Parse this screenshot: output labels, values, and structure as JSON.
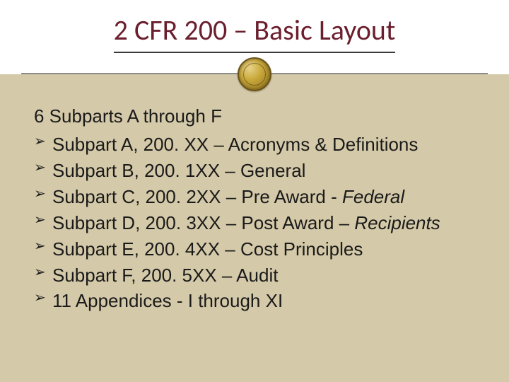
{
  "title": "2 CFR 200 – Basic Layout",
  "heading": "6 Subparts A through F",
  "bullets": [
    {
      "pre": "Subpart A, 200. XX – Acronyms & Definitions",
      "ital": ""
    },
    {
      "pre": "Subpart B, 200. 1XX – General",
      "ital": ""
    },
    {
      "pre": "Subpart C, 200. 2XX – Pre Award - ",
      "ital": "Federal"
    },
    {
      "pre": "Subpart D, 200. 3XX – Post Award – ",
      "ital": "Recipients"
    },
    {
      "pre": "Subpart E, 200. 4XX – Cost Principles",
      "ital": ""
    },
    {
      "pre": "Subpart F, 200. 5XX –  Audit",
      "ital": ""
    },
    {
      "pre": "11 Appendices - I through XI",
      "ital": ""
    }
  ],
  "colors": {
    "background": "#d4c9a8",
    "title_area_bg": "#ffffff",
    "title_color": "#6b1f2e",
    "text_color": "#1a1a1a"
  },
  "typography": {
    "title_fontsize": 40,
    "body_fontsize": 26
  }
}
